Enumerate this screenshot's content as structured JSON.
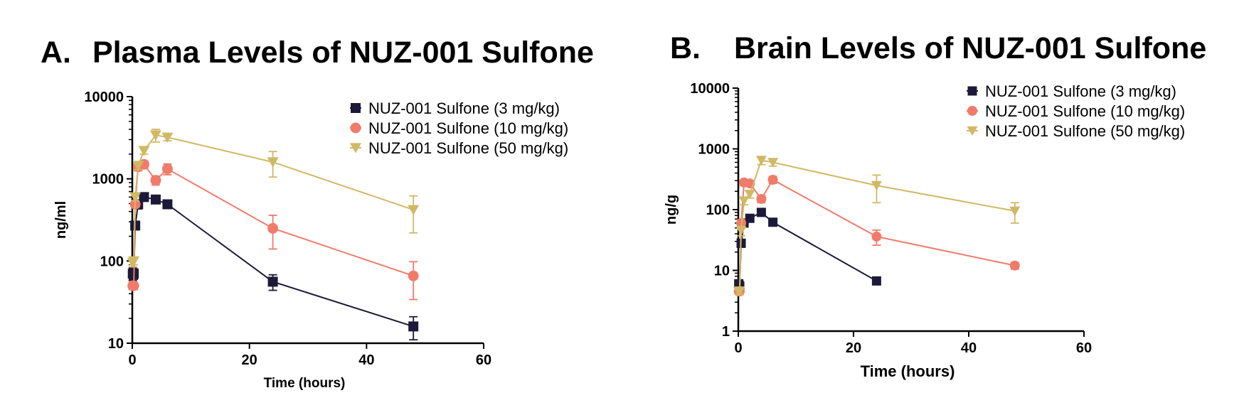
{
  "chart_data": [
    {
      "type": "line",
      "panel": "A.",
      "title": "Plasma Levels of NUZ-001 Sulfone",
      "xlabel": "Time (hours)",
      "ylabel": "ng/ml",
      "xlim": [
        0,
        60
      ],
      "ylim": [
        10,
        10000
      ],
      "yscale": "log",
      "xticks": [
        0,
        20,
        40,
        60
      ],
      "yticks": [
        10,
        100,
        1000,
        10000
      ],
      "ytick_labels": [
        "10",
        "100",
        "1000",
        "10000"
      ],
      "legend_position": "top-right",
      "grid": false,
      "series": [
        {
          "name": "NUZ-001 Sulfone (3 mg/kg)",
          "color": "#1c1a38",
          "marker": "square",
          "points": [
            {
              "x": 0.083,
              "y": 70,
              "err": 12
            },
            {
              "x": 0.25,
              "y": 70,
              "err": 10
            },
            {
              "x": 0.5,
              "y": 270,
              "err": 30
            },
            {
              "x": 1,
              "y": 490,
              "err": 60
            },
            {
              "x": 2,
              "y": 600,
              "err": 50
            },
            {
              "x": 4,
              "y": 560,
              "err": 50
            },
            {
              "x": 6,
              "y": 490,
              "err": 40
            },
            {
              "x": 24,
              "y": 56,
              "err": 12
            },
            {
              "x": 48,
              "y": 16,
              "err": 5
            }
          ]
        },
        {
          "name": "NUZ-001 Sulfone (10 mg/kg)",
          "color": "#f07b6b",
          "marker": "circle",
          "points": [
            {
              "x": 0.083,
              "y": 50,
              "err": 5
            },
            {
              "x": 0.25,
              "y": 50,
              "err": 5
            },
            {
              "x": 0.5,
              "y": 490,
              "err": 40
            },
            {
              "x": 1,
              "y": 1400,
              "err": 150
            },
            {
              "x": 2,
              "y": 1500,
              "err": 150
            },
            {
              "x": 4,
              "y": 960,
              "err": 120
            },
            {
              "x": 6,
              "y": 1320,
              "err": 200
            },
            {
              "x": 24,
              "y": 250,
              "err": 110
            },
            {
              "x": 48,
              "y": 66,
              "err": 32
            }
          ]
        },
        {
          "name": "NUZ-001 Sulfone (50 mg/kg)",
          "color": "#d1b865",
          "marker": "triangle-down",
          "points": [
            {
              "x": 0.083,
              "y": 95,
              "err": 10
            },
            {
              "x": 0.25,
              "y": 100,
              "err": 10
            },
            {
              "x": 0.5,
              "y": 600,
              "err": 60
            },
            {
              "x": 1,
              "y": 1450,
              "err": 150
            },
            {
              "x": 2,
              "y": 2200,
              "err": 200
            },
            {
              "x": 4,
              "y": 3400,
              "err": 600
            },
            {
              "x": 6,
              "y": 3200,
              "err": 300
            },
            {
              "x": 24,
              "y": 1600,
              "err": 550
            },
            {
              "x": 48,
              "y": 420,
              "err": 200
            }
          ]
        }
      ]
    },
    {
      "type": "line",
      "panel": "B.",
      "title": "Brain Levels of NUZ-001 Sulfone",
      "xlabel": "Time (hours)",
      "ylabel": "ng/g",
      "xlim": [
        0,
        60
      ],
      "ylim": [
        1,
        10000
      ],
      "yscale": "log",
      "xticks": [
        0,
        20,
        40,
        60
      ],
      "yticks": [
        1,
        10,
        100,
        1000,
        10000
      ],
      "ytick_labels": [
        "1",
        "10",
        "100",
        "1000",
        "10000"
      ],
      "legend_position": "top-right",
      "grid": false,
      "series": [
        {
          "name": "NUZ-001 Sulfone (3 mg/kg)",
          "color": "#1c1a38",
          "marker": "square",
          "points": [
            {
              "x": 0.083,
              "y": 6,
              "err": 1
            },
            {
              "x": 0.25,
              "y": 5.5,
              "err": 1
            },
            {
              "x": 0.5,
              "y": 28,
              "err": 4
            },
            {
              "x": 1,
              "y": 60,
              "err": 8
            },
            {
              "x": 2,
              "y": 72,
              "err": 8
            },
            {
              "x": 4,
              "y": 90,
              "err": 12
            },
            {
              "x": 6,
              "y": 62,
              "err": 8
            },
            {
              "x": 24,
              "y": 6.7,
              "err": 0.8
            }
          ]
        },
        {
          "name": "NUZ-001 Sulfone (10 mg/kg)",
          "color": "#f07b6b",
          "marker": "circle",
          "points": [
            {
              "x": 0.083,
              "y": 4.5,
              "err": 0.5
            },
            {
              "x": 0.25,
              "y": 4.5,
              "err": 0.5
            },
            {
              "x": 0.5,
              "y": 60,
              "err": 8
            },
            {
              "x": 1,
              "y": 280,
              "err": 30
            },
            {
              "x": 2,
              "y": 270,
              "err": 30
            },
            {
              "x": 4,
              "y": 150,
              "err": 20
            },
            {
              "x": 6,
              "y": 310,
              "err": 40
            },
            {
              "x": 24,
              "y": 36,
              "err": 10
            },
            {
              "x": 48,
              "y": 12,
              "err": 1.5
            }
          ]
        },
        {
          "name": "NUZ-001 Sulfone (50 mg/kg)",
          "color": "#d1b865",
          "marker": "triangle-down",
          "points": [
            {
              "x": 0.083,
              "y": 4.5,
              "err": 0.5
            },
            {
              "x": 0.25,
              "y": 4.6,
              "err": 0.5
            },
            {
              "x": 0.5,
              "y": 45,
              "err": 8
            },
            {
              "x": 1,
              "y": 140,
              "err": 20
            },
            {
              "x": 2,
              "y": 180,
              "err": 25
            },
            {
              "x": 4,
              "y": 650,
              "err": 100
            },
            {
              "x": 6,
              "y": 600,
              "err": 80
            },
            {
              "x": 24,
              "y": 250,
              "err": 120
            },
            {
              "x": 48,
              "y": 95,
              "err": 35
            }
          ]
        }
      ]
    }
  ]
}
